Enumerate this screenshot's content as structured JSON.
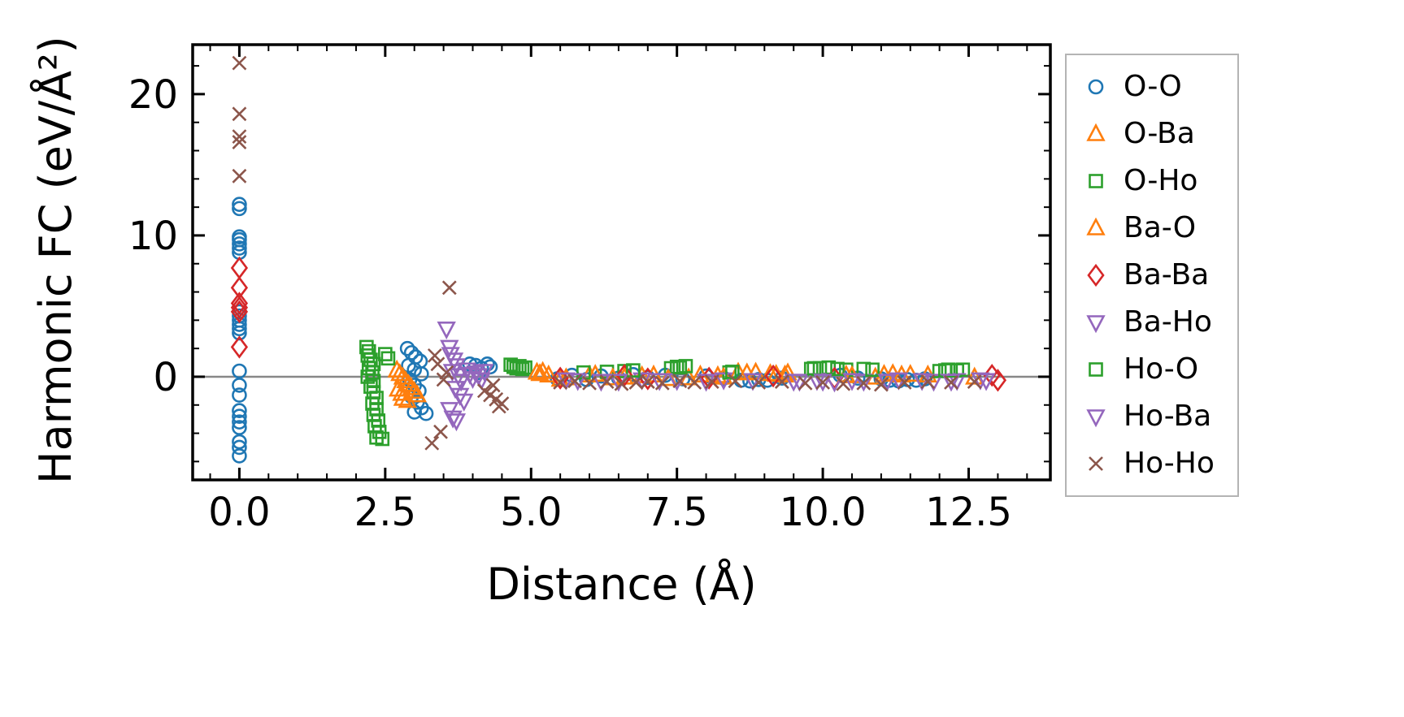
{
  "chart_data": {
    "type": "scatter",
    "title": "",
    "xlabel": "Distance (Å)",
    "ylabel": "Harmonic FC (eV/Å²)",
    "xlim": [
      -0.8,
      13.9
    ],
    "ylim": [
      -7.3,
      23.5
    ],
    "grid": false,
    "zero_line": true,
    "zero_line_color": "#888888",
    "legend_position": "outside-right",
    "x_ticks": {
      "values": [
        0,
        2.5,
        5,
        7.5,
        10,
        12.5
      ],
      "labels": [
        "0.0",
        "2.5",
        "5.0",
        "7.5",
        "10.0",
        "12.5"
      ]
    },
    "y_ticks": {
      "values": [
        0,
        10,
        20
      ],
      "labels": [
        "0",
        "10",
        "20"
      ]
    },
    "series": [
      {
        "name": "O-O",
        "color": "#1f77b4",
        "marker": "circle",
        "points": [
          [
            0,
            12.2
          ],
          [
            0,
            11.9
          ],
          [
            0,
            9.9
          ],
          [
            0,
            9.7
          ],
          [
            0,
            9.4
          ],
          [
            0,
            9.1
          ],
          [
            0,
            8.8
          ],
          [
            0,
            4.6
          ],
          [
            0,
            4.3
          ],
          [
            0,
            4.0
          ],
          [
            0,
            3.7
          ],
          [
            0,
            3.4
          ],
          [
            0,
            3.1
          ],
          [
            0,
            0.4
          ],
          [
            0,
            -0.6
          ],
          [
            0,
            -1.3
          ],
          [
            0,
            -2.4
          ],
          [
            0,
            -2.8
          ],
          [
            0,
            -3.2
          ],
          [
            0,
            -3.6
          ],
          [
            0,
            -4.6
          ],
          [
            0,
            -5.0
          ],
          [
            0,
            -5.6
          ],
          [
            2.88,
            2.0
          ],
          [
            2.95,
            1.7
          ],
          [
            3.02,
            1.4
          ],
          [
            3.1,
            1.1
          ],
          [
            2.9,
            0.8
          ],
          [
            3.0,
            0.5
          ],
          [
            3.12,
            0.2
          ],
          [
            2.92,
            -0.2
          ],
          [
            3.0,
            -0.6
          ],
          [
            3.08,
            -1.0
          ],
          [
            2.95,
            -1.4
          ],
          [
            3.05,
            -1.8
          ],
          [
            3.12,
            -2.2
          ],
          [
            3.0,
            -2.5
          ],
          [
            3.2,
            -2.6
          ],
          [
            3.95,
            0.9
          ],
          [
            4.05,
            0.8
          ],
          [
            4.15,
            0.6
          ],
          [
            4.25,
            0.9
          ],
          [
            4.3,
            0.7
          ],
          [
            4.1,
            0.3
          ],
          [
            5.45,
            -0.15
          ],
          [
            5.7,
            0.1
          ],
          [
            5.95,
            -0.2
          ],
          [
            6.2,
            0.05
          ],
          [
            6.5,
            -0.1
          ],
          [
            6.75,
            0.15
          ],
          [
            7.0,
            -0.05
          ],
          [
            7.3,
            0.1
          ],
          [
            7.6,
            -0.15
          ],
          [
            8.0,
            0.05
          ],
          [
            8.3,
            -0.1
          ],
          [
            8.6,
            -0.25
          ],
          [
            8.75,
            -0.3
          ],
          [
            8.9,
            -0.2
          ],
          [
            9.05,
            -0.25
          ],
          [
            9.3,
            -0.1
          ],
          [
            10.3,
            0.1
          ],
          [
            10.6,
            -0.1
          ],
          [
            11.0,
            -0.15
          ],
          [
            11.15,
            -0.25
          ],
          [
            11.3,
            -0.3
          ],
          [
            11.45,
            -0.2
          ],
          [
            11.6,
            -0.25
          ],
          [
            11.75,
            -0.15
          ]
        ]
      },
      {
        "name": "O-Ba",
        "color": "#ff7f0e",
        "marker": "triangle-up",
        "points": [
          [
            2.7,
            0.45
          ],
          [
            2.75,
            0.2
          ],
          [
            2.8,
            -0.05
          ],
          [
            2.85,
            -0.3
          ],
          [
            2.9,
            -0.55
          ],
          [
            2.95,
            -0.8
          ],
          [
            3.0,
            -1.05
          ],
          [
            3.05,
            -1.3
          ],
          [
            2.8,
            -1.55
          ],
          [
            2.88,
            -1.7
          ],
          [
            2.72,
            -0.9
          ],
          [
            2.78,
            -1.2
          ],
          [
            5.3,
            0.1
          ],
          [
            5.6,
            -0.1
          ],
          [
            6.1,
            0.15
          ],
          [
            6.6,
            -0.05
          ],
          [
            7.1,
            0.1
          ],
          [
            7.7,
            -0.1
          ],
          [
            8.2,
            0.05
          ],
          [
            8.55,
            0.3
          ],
          [
            8.7,
            0.25
          ],
          [
            8.85,
            0.3
          ],
          [
            9.1,
            0.2
          ],
          [
            9.4,
            0.25
          ],
          [
            10.4,
            0.1
          ],
          [
            10.9,
            -0.05
          ],
          [
            11.2,
            0.2
          ],
          [
            11.5,
            0.15
          ],
          [
            11.8,
            0.1
          ]
        ]
      },
      {
        "name": "O-Ho",
        "color": "#2ca02c",
        "marker": "square",
        "points": [
          [
            2.18,
            2.1
          ],
          [
            2.22,
            1.8
          ],
          [
            2.2,
            1.5
          ],
          [
            2.25,
            1.2
          ],
          [
            2.3,
            0.9
          ],
          [
            2.22,
            0.6
          ],
          [
            2.28,
            0.3
          ],
          [
            2.2,
            0.0
          ],
          [
            2.3,
            -0.3
          ],
          [
            2.25,
            -0.7
          ],
          [
            2.3,
            -1.1
          ],
          [
            2.35,
            -1.5
          ],
          [
            2.28,
            -1.9
          ],
          [
            2.35,
            -2.3
          ],
          [
            2.3,
            -2.7
          ],
          [
            2.38,
            -3.1
          ],
          [
            2.32,
            -3.5
          ],
          [
            2.4,
            -3.9
          ],
          [
            2.35,
            -4.3
          ],
          [
            2.45,
            -4.4
          ],
          [
            2.5,
            1.6
          ],
          [
            2.55,
            1.3
          ],
          [
            4.65,
            0.85
          ],
          [
            4.7,
            0.7
          ],
          [
            4.75,
            0.6
          ],
          [
            4.8,
            0.75
          ],
          [
            4.85,
            0.55
          ],
          [
            4.9,
            0.65
          ],
          [
            6.3,
            0.35
          ],
          [
            6.6,
            0.4
          ],
          [
            7.4,
            0.6
          ],
          [
            7.5,
            0.7
          ],
          [
            7.65,
            0.75
          ],
          [
            8.4,
            0.3
          ],
          [
            9.8,
            0.55
          ],
          [
            9.95,
            0.6
          ],
          [
            10.1,
            0.65
          ],
          [
            10.4,
            0.5
          ],
          [
            10.7,
            0.55
          ],
          [
            12.0,
            0.4
          ],
          [
            12.15,
            0.5
          ],
          [
            12.3,
            0.45
          ]
        ]
      },
      {
        "name": "Ba-O",
        "color": "#ff7f0e",
        "marker": "triangle-up",
        "points": [
          [
            5.1,
            0.3
          ],
          [
            5.15,
            0.2
          ],
          [
            5.2,
            0.35
          ],
          [
            5.5,
            -0.2
          ],
          [
            6.0,
            0.1
          ],
          [
            6.4,
            -0.1
          ],
          [
            6.9,
            0.05
          ],
          [
            7.35,
            -0.15
          ],
          [
            7.9,
            0.1
          ],
          [
            8.3,
            -0.05
          ],
          [
            9.2,
            0.15
          ],
          [
            9.35,
            0.1
          ],
          [
            10.5,
            0.05
          ],
          [
            11.05,
            0.15
          ],
          [
            11.35,
            0.1
          ],
          [
            12.6,
            -0.05
          ]
        ]
      },
      {
        "name": "Ba-Ba",
        "color": "#d62728",
        "marker": "diamond",
        "points": [
          [
            0,
            7.7
          ],
          [
            0,
            6.3
          ],
          [
            0,
            5.2
          ],
          [
            0,
            4.9
          ],
          [
            0,
            4.6
          ],
          [
            0,
            2.1
          ],
          [
            5.5,
            -0.1
          ],
          [
            6.6,
            0.1
          ],
          [
            7.0,
            -0.15
          ],
          [
            8.05,
            -0.1
          ],
          [
            9.15,
            0.05
          ],
          [
            10.2,
            -0.1
          ],
          [
            12.9,
            0.1
          ],
          [
            13.0,
            -0.25
          ]
        ]
      },
      {
        "name": "Ba-Ho",
        "color": "#9467bd",
        "marker": "triangle-down",
        "points": [
          [
            3.55,
            3.4
          ],
          [
            3.6,
            2.1
          ],
          [
            3.62,
            1.6
          ],
          [
            3.68,
            1.2
          ],
          [
            3.72,
            0.8
          ],
          [
            3.65,
            0.4
          ],
          [
            3.75,
            0.1
          ],
          [
            3.8,
            -0.3
          ],
          [
            3.7,
            -0.8
          ],
          [
            3.78,
            -1.3
          ],
          [
            3.85,
            -1.7
          ],
          [
            3.6,
            -2.3
          ],
          [
            3.66,
            -2.9
          ],
          [
            3.72,
            -3.1
          ],
          [
            3.9,
            0.5
          ],
          [
            3.95,
            0.2
          ],
          [
            4.0,
            -0.1
          ],
          [
            4.05,
            0.3
          ],
          [
            4.1,
            0.1
          ],
          [
            4.15,
            -0.2
          ],
          [
            4.2,
            0.4
          ],
          [
            5.6,
            -0.2
          ],
          [
            6.2,
            -0.3
          ],
          [
            6.9,
            -0.2
          ],
          [
            7.5,
            -0.25
          ],
          [
            8.3,
            -0.2
          ],
          [
            9.6,
            -0.3
          ],
          [
            9.9,
            -0.25
          ],
          [
            10.2,
            -0.35
          ],
          [
            10.7,
            -0.3
          ],
          [
            11.3,
            -0.2
          ],
          [
            11.9,
            -0.3
          ],
          [
            12.3,
            -0.25
          ],
          [
            12.7,
            -0.2
          ]
        ]
      },
      {
        "name": "Ho-O",
        "color": "#2ca02c",
        "marker": "square",
        "points": [
          [
            5.9,
            0.3
          ],
          [
            6.75,
            0.45
          ],
          [
            7.55,
            0.65
          ],
          [
            8.45,
            0.35
          ],
          [
            9.85,
            0.6
          ],
          [
            10.25,
            0.55
          ],
          [
            10.85,
            0.5
          ],
          [
            12.1,
            0.45
          ],
          [
            12.4,
            0.5
          ]
        ]
      },
      {
        "name": "Ho-Ba",
        "color": "#9467bd",
        "marker": "triangle-down",
        "points": [
          [
            5.8,
            -0.25
          ],
          [
            6.5,
            -0.3
          ],
          [
            7.2,
            -0.25
          ],
          [
            8.0,
            -0.3
          ],
          [
            8.8,
            -0.25
          ],
          [
            9.5,
            -0.3
          ],
          [
            10.0,
            -0.3
          ],
          [
            10.5,
            -0.25
          ],
          [
            11.1,
            -0.3
          ],
          [
            11.7,
            -0.25
          ],
          [
            12.2,
            -0.3
          ],
          [
            12.8,
            -0.25
          ]
        ]
      },
      {
        "name": "Ho-Ho",
        "color": "#8c564b",
        "marker": "x",
        "points": [
          [
            0,
            22.2
          ],
          [
            0,
            18.6
          ],
          [
            0,
            17.0
          ],
          [
            0,
            16.6
          ],
          [
            0,
            14.2
          ],
          [
            3.3,
            -4.7
          ],
          [
            3.6,
            6.3
          ],
          [
            3.45,
            -3.9
          ],
          [
            3.35,
            1.5
          ],
          [
            3.4,
            0.9
          ],
          [
            3.5,
            -0.2
          ],
          [
            3.55,
            0.3
          ],
          [
            4.2,
            -1.0
          ],
          [
            4.3,
            -1.3
          ],
          [
            4.4,
            -1.6
          ],
          [
            4.5,
            -1.9
          ],
          [
            4.45,
            -2.1
          ],
          [
            4.35,
            -0.6
          ],
          [
            5.5,
            -0.4
          ],
          [
            5.75,
            -0.3
          ],
          [
            6.0,
            -0.45
          ],
          [
            6.3,
            -0.35
          ],
          [
            6.55,
            -0.5
          ],
          [
            6.8,
            -0.4
          ],
          [
            7.0,
            -0.35
          ],
          [
            7.25,
            -0.45
          ],
          [
            7.55,
            -0.3
          ],
          [
            7.8,
            -0.4
          ],
          [
            8.1,
            -0.35
          ],
          [
            8.5,
            -0.3
          ],
          [
            8.9,
            -0.4
          ],
          [
            9.3,
            -0.35
          ],
          [
            9.7,
            -0.45
          ],
          [
            10.0,
            -0.4
          ],
          [
            10.35,
            -0.5
          ],
          [
            10.7,
            -0.45
          ],
          [
            11.0,
            -0.55
          ],
          [
            11.4,
            -0.4
          ],
          [
            11.8,
            -0.35
          ],
          [
            12.2,
            -0.4
          ],
          [
            12.6,
            -0.35
          ]
        ]
      }
    ]
  }
}
